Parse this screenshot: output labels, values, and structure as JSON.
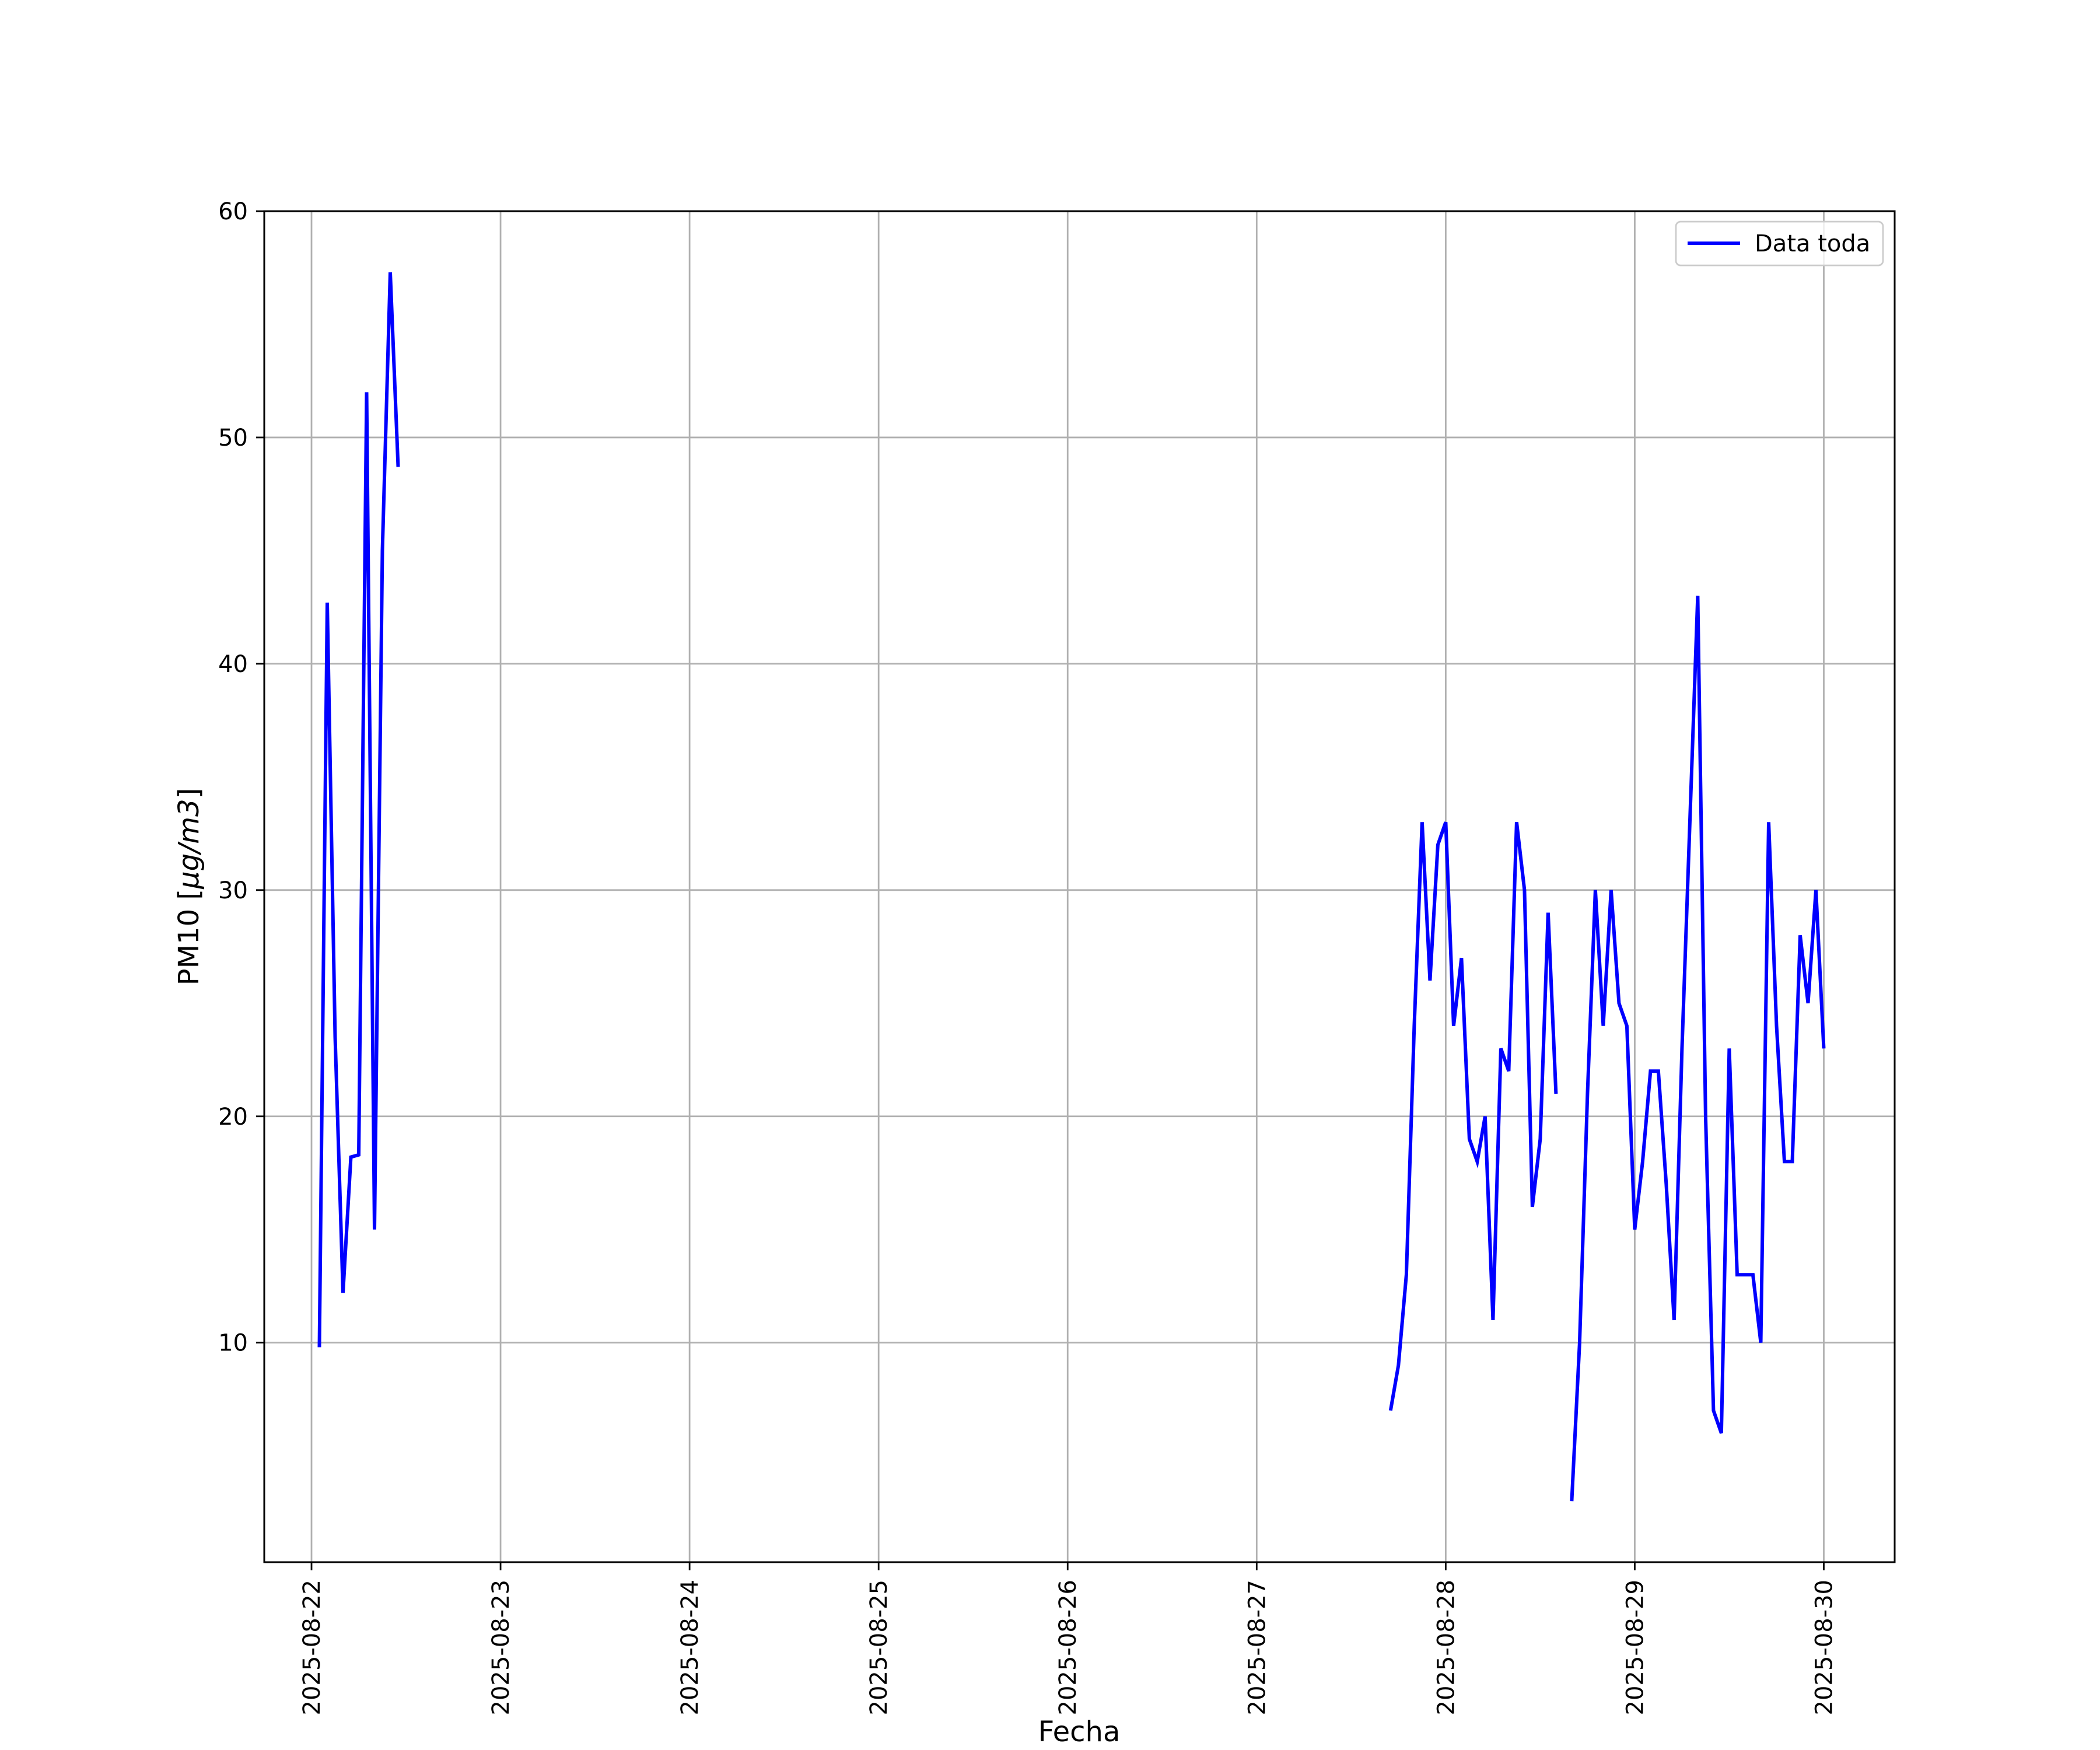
{
  "chart_data": {
    "type": "line",
    "title": "",
    "xlabel": "Fecha",
    "ylabel": "PM10 [µg/m3]",
    "ylabel_parts": {
      "prefix": "PM10 [",
      "italic": "µg/m3",
      "suffix": "]"
    },
    "xlim": [
      "2025-08-21 18:00",
      "2025-08-30 09:00"
    ],
    "ylim": [
      0.3,
      60
    ],
    "grid": true,
    "legend_position": "top-right",
    "x_ticks": [
      "2025-08-22",
      "2025-08-23",
      "2025-08-24",
      "2025-08-25",
      "2025-08-26",
      "2025-08-27",
      "2025-08-28",
      "2025-08-29",
      "2025-08-30"
    ],
    "y_ticks": [
      10,
      20,
      30,
      40,
      50,
      60
    ],
    "series": [
      {
        "name": "Data toda",
        "color": "#0000ff",
        "segments": [
          [
            [
              "2025-08-22 01:00",
              9.8
            ],
            [
              "2025-08-22 02:00",
              42.7
            ],
            [
              "2025-08-22 03:00",
              23.5
            ],
            [
              "2025-08-22 04:00",
              12.2
            ],
            [
              "2025-08-22 05:00",
              18.2
            ],
            [
              "2025-08-22 06:00",
              18.3
            ],
            [
              "2025-08-22 07:00",
              52.0
            ],
            [
              "2025-08-22 08:00",
              15.0
            ],
            [
              "2025-08-22 09:00",
              45.0
            ],
            [
              "2025-08-22 10:00",
              57.3
            ],
            [
              "2025-08-22 11:00",
              48.7
            ]
          ],
          [
            [
              "2025-08-27 17:00",
              7.0
            ],
            [
              "2025-08-27 18:00",
              9.0
            ],
            [
              "2025-08-27 19:00",
              13.0
            ],
            [
              "2025-08-27 20:00",
              24.0
            ],
            [
              "2025-08-27 21:00",
              33.0
            ],
            [
              "2025-08-27 22:00",
              26.0
            ],
            [
              "2025-08-27 23:00",
              32.0
            ],
            [
              "2025-08-28 00:00",
              33.0
            ],
            [
              "2025-08-28 01:00",
              24.0
            ],
            [
              "2025-08-28 02:00",
              27.0
            ],
            [
              "2025-08-28 03:00",
              19.0
            ],
            [
              "2025-08-28 04:00",
              18.0
            ],
            [
              "2025-08-28 05:00",
              20.0
            ],
            [
              "2025-08-28 06:00",
              11.0
            ],
            [
              "2025-08-28 07:00",
              23.0
            ],
            [
              "2025-08-28 08:00",
              22.0
            ],
            [
              "2025-08-28 09:00",
              33.0
            ],
            [
              "2025-08-28 10:00",
              30.0
            ],
            [
              "2025-08-28 11:00",
              16.0
            ],
            [
              "2025-08-28 12:00",
              19.0
            ],
            [
              "2025-08-28 13:00",
              29.0
            ],
            [
              "2025-08-28 14:00",
              21.0
            ]
          ],
          [
            [
              "2025-08-28 16:00",
              3.0
            ],
            [
              "2025-08-28 17:00",
              10.0
            ],
            [
              "2025-08-28 18:00",
              21.0
            ],
            [
              "2025-08-28 19:00",
              30.0
            ],
            [
              "2025-08-28 20:00",
              24.0
            ],
            [
              "2025-08-28 21:00",
              30.0
            ],
            [
              "2025-08-28 22:00",
              25.0
            ],
            [
              "2025-08-28 23:00",
              24.0
            ],
            [
              "2025-08-29 00:00",
              15.0
            ],
            [
              "2025-08-29 01:00",
              18.0
            ],
            [
              "2025-08-29 02:00",
              22.0
            ],
            [
              "2025-08-29 03:00",
              22.0
            ],
            [
              "2025-08-29 04:00",
              17.0
            ],
            [
              "2025-08-29 05:00",
              11.0
            ],
            [
              "2025-08-29 06:00",
              23.0
            ],
            [
              "2025-08-29 07:00",
              33.0
            ],
            [
              "2025-08-29 08:00",
              43.0
            ],
            [
              "2025-08-29 09:00",
              20.0
            ],
            [
              "2025-08-29 10:00",
              7.0
            ],
            [
              "2025-08-29 11:00",
              6.0
            ],
            [
              "2025-08-29 12:00",
              23.0
            ],
            [
              "2025-08-29 13:00",
              13.0
            ],
            [
              "2025-08-29 14:00",
              13.0
            ],
            [
              "2025-08-29 15:00",
              13.0
            ],
            [
              "2025-08-29 16:00",
              10.0
            ],
            [
              "2025-08-29 17:00",
              33.0
            ],
            [
              "2025-08-29 18:00",
              24.0
            ],
            [
              "2025-08-29 19:00",
              18.0
            ],
            [
              "2025-08-29 20:00",
              18.0
            ],
            [
              "2025-08-29 21:00",
              28.0
            ],
            [
              "2025-08-29 22:00",
              25.0
            ],
            [
              "2025-08-29 23:00",
              30.0
            ],
            [
              "2025-08-30 00:00",
              23.0
            ]
          ]
        ]
      }
    ]
  }
}
